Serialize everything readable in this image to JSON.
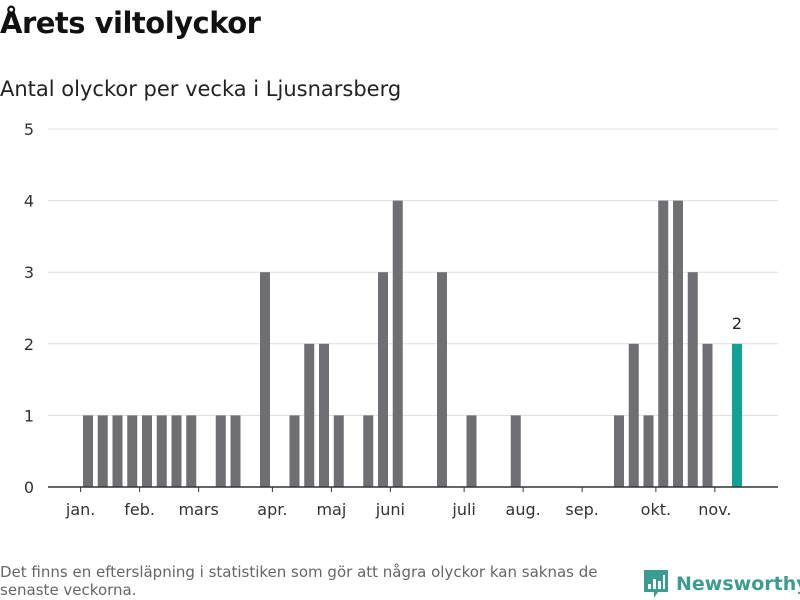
{
  "header": {
    "title": "Årets viltolyckor",
    "subtitle": "Antal olyckor per vecka i Ljusnarsberg"
  },
  "footer": {
    "note": "Det finns en eftersläpning i statistiken som gör att några olyckor kan saknas de senaste veckorna.",
    "brand": "Newsworthy",
    "brand_icon": "newsworthy-logo-icon"
  },
  "colors": {
    "bar": "#6f6e73",
    "highlight": "#12a295",
    "grid": "#dddddd",
    "axis": "#333333",
    "brand": "#3b9c8f"
  },
  "chart_data": {
    "type": "bar",
    "title": "Antal olyckor per vecka i Ljusnarsberg",
    "xlabel": "",
    "ylabel": "",
    "ylim": [
      0,
      5
    ],
    "yticks": [
      0,
      1,
      2,
      3,
      4,
      5
    ],
    "grid": true,
    "x_unit": "week",
    "weeks": [
      1,
      2,
      3,
      4,
      5,
      6,
      7,
      8,
      9,
      10,
      11,
      12,
      13,
      14,
      15,
      16,
      17,
      18,
      19,
      20,
      21,
      22,
      23,
      24,
      25,
      26,
      27,
      28,
      29,
      30,
      31,
      32,
      33,
      34,
      35,
      36,
      37,
      38,
      39,
      40,
      41,
      42,
      43,
      44,
      45,
      46
    ],
    "values": [
      0,
      1,
      1,
      1,
      1,
      1,
      1,
      1,
      1,
      0,
      1,
      1,
      0,
      3,
      0,
      1,
      2,
      2,
      1,
      0,
      1,
      3,
      4,
      0,
      0,
      3,
      0,
      1,
      0,
      0,
      1,
      0,
      0,
      0,
      0,
      0,
      0,
      1,
      2,
      1,
      4,
      4,
      3,
      2,
      0,
      2
    ],
    "highlight_week": 46,
    "data_labels": [
      {
        "week": 46,
        "text": "2"
      }
    ],
    "month_labels": [
      {
        "label": "jan.",
        "week": 1.5
      },
      {
        "label": "feb.",
        "week": 5.5
      },
      {
        "label": "mars",
        "week": 9.5
      },
      {
        "label": "apr.",
        "week": 14.5
      },
      {
        "label": "maj",
        "week": 18.5
      },
      {
        "label": "juni",
        "week": 22.5
      },
      {
        "label": "juli",
        "week": 27.5
      },
      {
        "label": "aug.",
        "week": 31.5
      },
      {
        "label": "sep.",
        "week": 35.5
      },
      {
        "label": "okt.",
        "week": 40.5
      },
      {
        "label": "nov.",
        "week": 44.5
      }
    ]
  }
}
